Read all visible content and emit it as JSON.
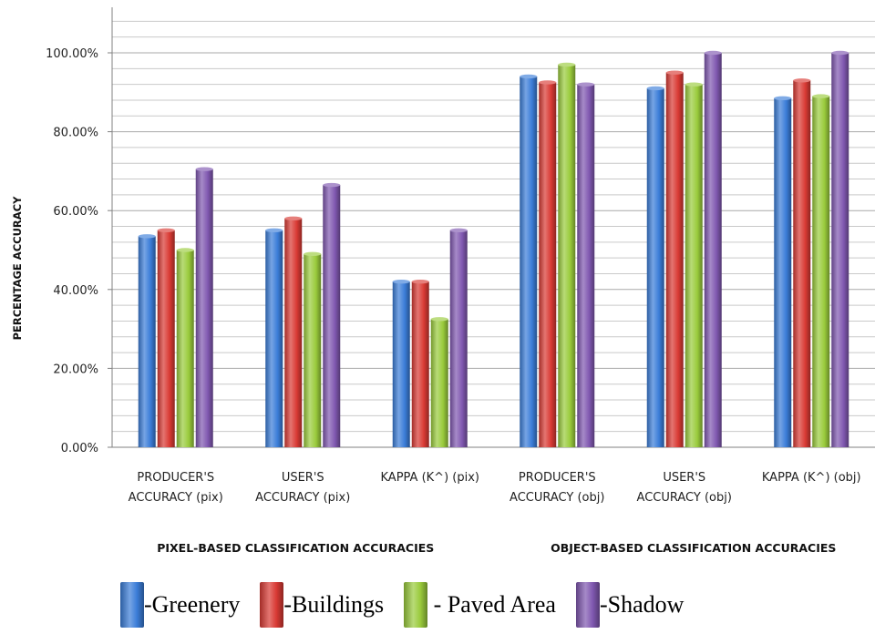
{
  "chart_data": {
    "type": "bar",
    "title": "",
    "ylabel": "PERCENTAGE ACCURACY",
    "ylim": [
      0,
      100
    ],
    "yticks": [
      "0.00%",
      "20.00%",
      "40.00%",
      "60.00%",
      "80.00%",
      "100.00%"
    ],
    "grid": true,
    "categories": [
      [
        "PRODUCER'S",
        "ACCURACY (pix)"
      ],
      [
        "USER'S",
        "ACCURACY (pix)"
      ],
      [
        "KAPPA (K^) (pix)"
      ],
      [
        "PRODUCER'S",
        "ACCURACY (obj)"
      ],
      [
        "USER'S",
        "ACCURACY (obj)"
      ],
      [
        "KAPPA (K^) (obj)"
      ]
    ],
    "groups": [
      {
        "label": "PIXEL-BASED CLASSIFICATION ACCURACIES",
        "categories": [
          0,
          1,
          2
        ]
      },
      {
        "label": "OBJECT-BASED  CLASSIFICATION ACCURACIES",
        "categories": [
          3,
          4,
          5
        ]
      }
    ],
    "series": [
      {
        "name": "-Greenery",
        "color": "#3b7dd8",
        "values": [
          53.5,
          55.0,
          42.0,
          94.0,
          91.0,
          88.5
        ]
      },
      {
        "name": "-Buildings",
        "color": "#d93a34",
        "values": [
          55.0,
          58.0,
          42.0,
          92.5,
          95.0,
          93.0
        ]
      },
      {
        "name": " - Paved Area",
        "color": "#9acb3c",
        "values": [
          50.0,
          49.0,
          32.5,
          97.0,
          92.0,
          89.0
        ]
      },
      {
        "name": "-Shadow",
        "color": "#8058b0",
        "values": [
          70.5,
          66.5,
          55.0,
          92.0,
          100.0,
          100.0
        ]
      }
    ],
    "legend_position": "bottom"
  }
}
